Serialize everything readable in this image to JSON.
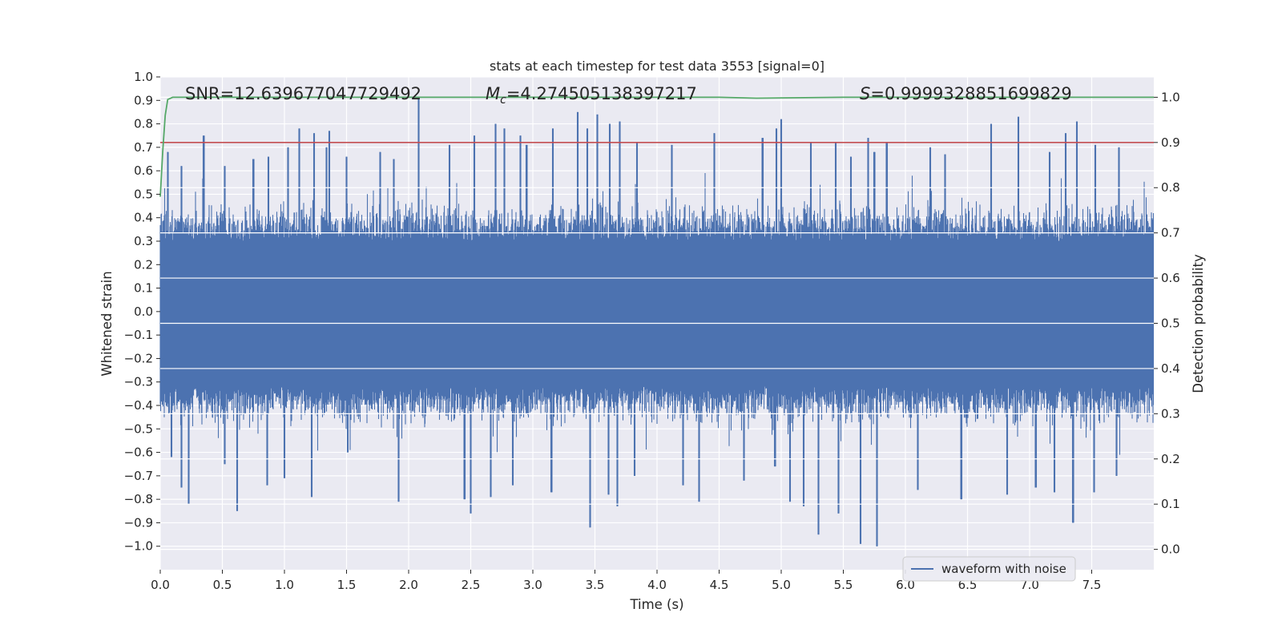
{
  "chart_data": {
    "type": "line",
    "title": "stats at each timestep for test data 3553 [signal=0]",
    "xlabel": "Time (s)",
    "ylabel": "Whitened strain",
    "y2label": "Detection probability",
    "xlim": [
      0.0,
      8.0
    ],
    "ylim": [
      -1.1,
      1.0
    ],
    "y2lim": [
      -0.045,
      1.045
    ],
    "xticks": [
      "0.0",
      "0.5",
      "1.0",
      "1.5",
      "2.0",
      "2.5",
      "3.0",
      "3.5",
      "4.0",
      "4.5",
      "5.0",
      "5.5",
      "6.0",
      "6.5",
      "7.0",
      "7.5"
    ],
    "yticks": [
      "1.0",
      "0.9",
      "0.8",
      "0.7",
      "0.6",
      "0.5",
      "0.4",
      "0.3",
      "0.2",
      "0.1",
      "0.0",
      "−0.1",
      "−0.2",
      "−0.3",
      "−0.4",
      "−0.5",
      "−0.6",
      "−0.7",
      "−0.8",
      "−0.9",
      "−1.0"
    ],
    "y2ticks": [
      "1.0",
      "0.9",
      "0.8",
      "0.7",
      "0.6",
      "0.5",
      "0.4",
      "0.3",
      "0.2",
      "0.1",
      "0.0"
    ],
    "annotations": {
      "snr": "SNR=12.639677047729492",
      "mc_symbol": "M",
      "mc_sub": "c",
      "mc_value": "=4.274505138397217",
      "s_symbol": "S",
      "s_value": "=0.9999328851699829"
    },
    "series": [
      {
        "name": "waveform with noise",
        "axis": "left",
        "color": "#4c72b0",
        "envelope": "dense noise, typical amplitude ±0.5, spikes up to +0.91 and down to −1.0",
        "spikes_up": [
          [
            0.06,
            0.68
          ],
          [
            0.17,
            0.62
          ],
          [
            0.35,
            0.75
          ],
          [
            0.52,
            0.62
          ],
          [
            0.75,
            0.65
          ],
          [
            0.87,
            0.66
          ],
          [
            1.03,
            0.7
          ],
          [
            1.12,
            0.78
          ],
          [
            1.24,
            0.76
          ],
          [
            1.34,
            0.7
          ],
          [
            1.36,
            0.77
          ],
          [
            1.5,
            0.66
          ],
          [
            1.77,
            0.68
          ],
          [
            1.88,
            0.65
          ],
          [
            2.08,
            0.91
          ],
          [
            2.33,
            0.71
          ],
          [
            2.53,
            0.75
          ],
          [
            2.7,
            0.8
          ],
          [
            2.77,
            0.78
          ],
          [
            2.9,
            0.75
          ],
          [
            2.95,
            0.71
          ],
          [
            3.16,
            0.78
          ],
          [
            3.36,
            0.85
          ],
          [
            3.44,
            0.78
          ],
          [
            3.52,
            0.84
          ],
          [
            3.62,
            0.8
          ],
          [
            3.7,
            0.81
          ],
          [
            3.84,
            0.72
          ],
          [
            4.12,
            0.71
          ],
          [
            4.46,
            0.76
          ],
          [
            4.85,
            0.74
          ],
          [
            4.96,
            0.78
          ],
          [
            5.0,
            0.82
          ],
          [
            5.24,
            0.72
          ],
          [
            5.44,
            0.72
          ],
          [
            5.56,
            0.66
          ],
          [
            5.7,
            0.74
          ],
          [
            5.75,
            0.68
          ],
          [
            5.85,
            0.72
          ],
          [
            6.2,
            0.7
          ],
          [
            6.32,
            0.67
          ],
          [
            6.69,
            0.8
          ],
          [
            6.91,
            0.83
          ],
          [
            7.16,
            0.68
          ],
          [
            7.29,
            0.76
          ],
          [
            7.38,
            0.81
          ],
          [
            7.53,
            0.71
          ],
          [
            7.72,
            0.7
          ]
        ],
        "spikes_down": [
          [
            0.09,
            -0.62
          ],
          [
            0.17,
            -0.75
          ],
          [
            0.23,
            -0.82
          ],
          [
            0.52,
            -0.65
          ],
          [
            0.62,
            -0.85
          ],
          [
            0.86,
            -0.74
          ],
          [
            1.0,
            -0.71
          ],
          [
            1.22,
            -0.79
          ],
          [
            1.51,
            -0.6
          ],
          [
            1.92,
            -0.81
          ],
          [
            2.45,
            -0.8
          ],
          [
            2.5,
            -0.86
          ],
          [
            2.66,
            -0.79
          ],
          [
            2.84,
            -0.74
          ],
          [
            3.15,
            -0.77
          ],
          [
            3.46,
            -0.92
          ],
          [
            3.61,
            -0.78
          ],
          [
            3.68,
            -0.83
          ],
          [
            3.82,
            -0.7
          ],
          [
            4.21,
            -0.74
          ],
          [
            4.34,
            -0.81
          ],
          [
            4.7,
            -0.72
          ],
          [
            4.95,
            -0.66
          ],
          [
            5.07,
            -0.81
          ],
          [
            5.18,
            -0.83
          ],
          [
            5.3,
            -0.95
          ],
          [
            5.46,
            -0.86
          ],
          [
            5.64,
            -0.99
          ],
          [
            5.77,
            -1.0
          ],
          [
            6.1,
            -0.76
          ],
          [
            6.45,
            -0.8
          ],
          [
            6.82,
            -0.78
          ],
          [
            7.05,
            -0.75
          ],
          [
            7.2,
            -0.77
          ],
          [
            7.35,
            -0.9
          ],
          [
            7.52,
            -0.77
          ],
          [
            7.7,
            -0.7
          ]
        ]
      },
      {
        "name": "Detection probability",
        "axis": "right",
        "color": "#55a868",
        "x": [
          0.0,
          0.02,
          0.04,
          0.06,
          0.1,
          0.2,
          1.0,
          2.0,
          3.0,
          4.0,
          4.5,
          4.8,
          5.5,
          6.0,
          7.0,
          8.0
        ],
        "y": [
          0.78,
          0.88,
          0.96,
          0.995,
          1.0,
          1.0,
          1.0,
          1.0,
          1.0,
          1.0,
          1.0,
          0.998,
          1.0,
          1.0,
          1.0,
          1.0
        ]
      },
      {
        "name": "threshold",
        "axis": "right",
        "color": "#c44e52",
        "x": [
          0.0,
          8.0
        ],
        "y": [
          0.9,
          0.9
        ]
      }
    ],
    "legend": {
      "entries": [
        "waveform with noise"
      ],
      "location": "lower right"
    },
    "colors": {
      "plot_bg": "#eaeaf2",
      "grid": "#ffffff",
      "waveform": "#4c72b0",
      "probability": "#55a868",
      "threshold": "#c44e52"
    }
  }
}
